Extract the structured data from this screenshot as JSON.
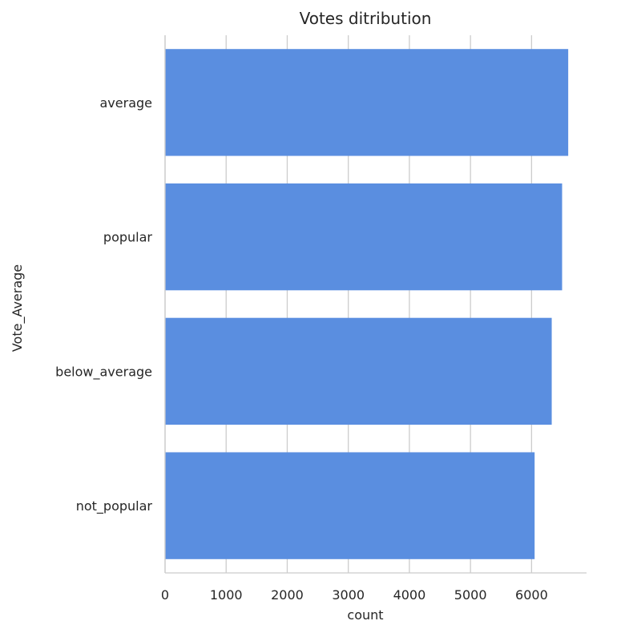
{
  "chart_data": {
    "type": "bar",
    "orientation": "horizontal",
    "title": "Votes ditribution",
    "xlabel": "count",
    "ylabel": "Vote_Average",
    "categories": [
      "average",
      "popular",
      "below_average",
      "not_popular"
    ],
    "values": [
      6600,
      6500,
      6330,
      6050
    ],
    "xlim": [
      0,
      6900
    ],
    "xticks": [
      0,
      1000,
      2000,
      3000,
      4000,
      5000,
      6000
    ],
    "xtick_labels": [
      "0",
      "1000",
      "2000",
      "3000",
      "4000",
      "5000",
      "6000"
    ],
    "grid": "vertical",
    "bar_color": "#5a8ee0"
  }
}
